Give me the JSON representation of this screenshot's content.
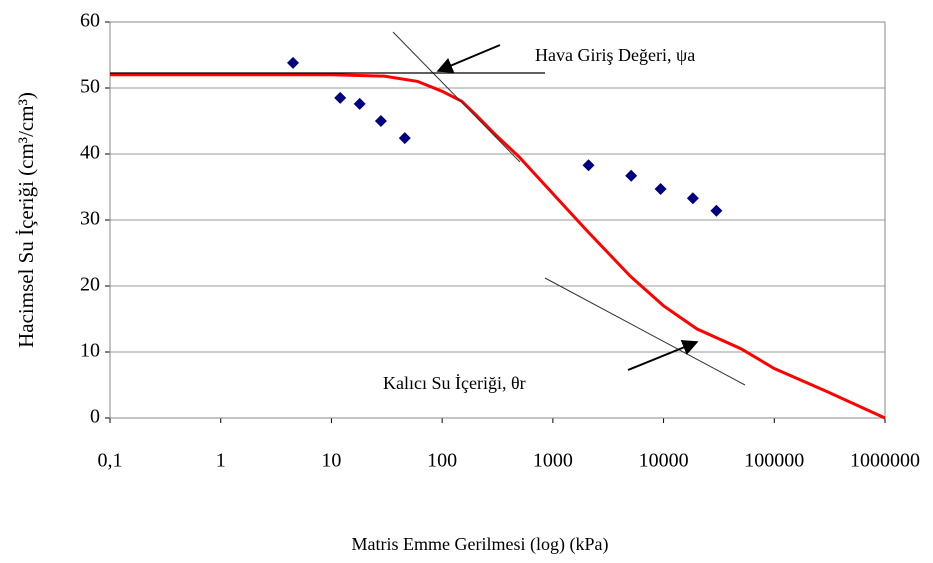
{
  "chart_data": {
    "type": "scatter",
    "xlabel": "Matris Emme Gerilmesi (log) (kPa)",
    "ylabel": "Hacimsel Su İçeriği (cm³/cm³)",
    "annotations": [
      "Hava Giriş Değeri, ψa",
      "Kalıcı Su İçeriği, θr"
    ],
    "xscale": "log",
    "xlim": [
      0.1,
      1000000
    ],
    "xticks": [
      {
        "value": 0.1,
        "label": "0,1"
      },
      1,
      10,
      100,
      1000,
      10000,
      100000,
      1000000
    ],
    "ylim": [
      0,
      60
    ],
    "yticks": [
      0,
      10,
      20,
      30,
      40,
      50,
      60
    ],
    "grid": true,
    "series": [
      {
        "type": "scatter",
        "color": "#000080",
        "x": [
          4.5,
          12,
          18,
          28,
          46,
          2100,
          5100,
          9400,
          18400,
          30000
        ],
        "values": [
          53.8,
          48.5,
          47.6,
          45,
          42.4,
          38.3,
          36.7,
          34.7,
          33.3,
          31.4
        ]
      },
      {
        "type": "line",
        "color": "#ff0000",
        "x": [
          0.1,
          1,
          10,
          30,
          60,
          100,
          150,
          200,
          300,
          500,
          1000,
          2000,
          5000,
          10000,
          20000,
          50000,
          100000,
          300000,
          1000000
        ],
        "values": [
          52,
          52,
          52,
          51.8,
          51,
          49.5,
          48,
          46,
          43,
          39.5,
          34,
          28.5,
          21.5,
          17,
          13.5,
          10.5,
          7.5,
          4,
          0
        ]
      }
    ]
  }
}
